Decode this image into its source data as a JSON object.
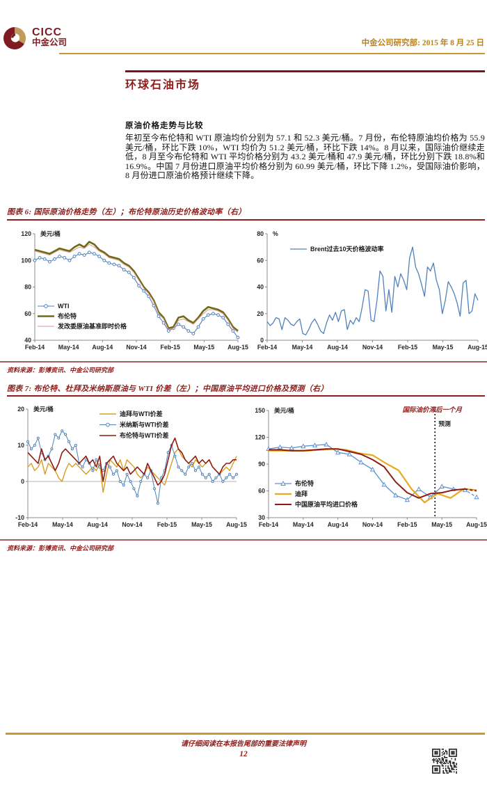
{
  "header": {
    "logo_text_en": "CICC",
    "logo_text_cn": "中金公司",
    "date_line": "中金公司研究部: 2015 年 8 月 25 日",
    "accent_gold": "#c9992f",
    "accent_maroon": "#7e1a20"
  },
  "content": {
    "page_title": "环球石油市场",
    "section_heading": "原油价格走势与比较",
    "paragraph": "年初至今布伦特和 WTI 原油均价分别为 57.1 和 52.3 美元/桶。7 月份，布伦特原油均价格为 55.9 美元/桶，环比下跌 10%，WTI 均价为 51.2 美元/桶，环比下跌 14%。8 月以来，国际油价继续走低，8 月至今布伦特和 WTI 平均价格分别为 43.2 美元/桶和 47.9 美元/桶，环比分别下跌 18.8%和 16.9%。中国 7 月份进口原油平均价格分别为 60.99 美元/桶，环比下降 1.2%，受国际油价影响，8 月份进口原油价格预计继续下降。"
  },
  "figure6": {
    "caption": "图表 6:  国际原油价格走势（左）；布伦特原油历史价格波动率（右）",
    "source": "资料来源：彭博资讯、中金公司研究部"
  },
  "figure7": {
    "caption": "图表 7:  布伦特、杜拜及米纳斯原油与 WTI 价差（左）；中国原油平均进口价格及预测（右）",
    "source": "资料来源：彭博资讯、中金公司研究部"
  },
  "footer": {
    "legal": "请仔细阅读在本报告尾部的重要法律声明",
    "page_number": "12"
  },
  "chart_data": [
    {
      "id": "fig6-left",
      "type": "line",
      "title": "国际原油价格走势",
      "unit_label": "美元/桶",
      "ylim": [
        40,
        120
      ],
      "yticks": [
        40,
        60,
        80,
        100,
        120
      ],
      "x_ticklabels": [
        "Feb-14",
        "May-14",
        "Aug-14",
        "Nov-14",
        "Feb-15",
        "May-15",
        "Aug-15"
      ],
      "series": [
        {
          "name": "WTI",
          "color": "#4f81bd",
          "width": 1.1,
          "marker": "circle",
          "values": [
            100,
            102,
            101,
            99,
            101,
            103,
            102,
            100,
            103,
            105,
            104,
            106,
            105,
            103,
            100,
            98,
            97,
            96,
            93,
            91,
            87,
            81,
            77,
            73,
            66,
            58,
            53,
            47,
            49,
            52,
            50,
            47,
            45,
            50,
            56,
            59,
            60,
            59,
            57,
            52,
            47,
            42
          ]
        },
        {
          "name": "布伦特",
          "color": "#6e6a14",
          "width": 2.6,
          "values": [
            108,
            107,
            106,
            105,
            107,
            109,
            108,
            107,
            110,
            112,
            110,
            114,
            112,
            108,
            106,
            103,
            102,
            101,
            98,
            96,
            92,
            86,
            80,
            76,
            70,
            61,
            57,
            49,
            50,
            57,
            58,
            55,
            53,
            57,
            62,
            65,
            64,
            63,
            61,
            56,
            50,
            47
          ]
        },
        {
          "name": "发改委原油基准即时价格",
          "color": "#d99694",
          "width": 1,
          "values": [
            107,
            106,
            105,
            104,
            106,
            108,
            107,
            106,
            108,
            110,
            109,
            112,
            110,
            107,
            105,
            102,
            101,
            100,
            97,
            95,
            91,
            85,
            79,
            75,
            69,
            60,
            56,
            48,
            49,
            55,
            56,
            54,
            52,
            56,
            60,
            63,
            63,
            62,
            60,
            55,
            49,
            46
          ]
        }
      ]
    },
    {
      "id": "fig6-right",
      "type": "line",
      "title": "布伦特原油历史价格波动率",
      "unit_label": "%",
      "ylim": [
        0,
        80
      ],
      "yticks": [
        0,
        20,
        40,
        60,
        80
      ],
      "x_ticklabels": [
        "Feb-14",
        "May-14",
        "Aug-14",
        "Nov-14",
        "Feb-15",
        "May-15",
        "Aug-15"
      ],
      "series": [
        {
          "name": "Brent过去10天价格波动率",
          "color": "#4f81bd",
          "width": 1.3,
          "values": [
            14,
            11,
            13,
            17,
            16,
            8,
            17,
            15,
            12,
            11,
            14,
            16,
            5,
            4,
            8,
            13,
            16,
            12,
            7,
            5,
            13,
            19,
            15,
            21,
            14,
            22,
            23,
            8,
            15,
            12,
            17,
            14,
            25,
            38,
            37,
            15,
            14,
            30,
            52,
            48,
            22,
            38,
            21,
            48,
            40,
            50,
            45,
            38,
            62,
            70,
            55,
            50,
            42,
            33,
            55,
            52,
            58,
            45,
            38,
            20,
            30,
            44,
            40,
            35,
            28,
            18,
            43,
            45,
            20,
            22,
            35,
            30
          ]
        }
      ]
    },
    {
      "id": "fig7-left",
      "type": "line",
      "title": "布伦特、杜拜及米纳斯原油与 WTI 价差",
      "unit_label": "美元/桶",
      "ylim": [
        -10,
        20
      ],
      "yticks": [
        -10,
        0,
        10,
        20
      ],
      "zeroline": true,
      "x_ticklabels": [
        "Feb-14",
        "May-14",
        "Aug-14",
        "Nov-14",
        "Feb-15",
        "May-15",
        "Aug-15"
      ],
      "series": [
        {
          "name": "迪拜与WTI价差",
          "color": "#d69d1f",
          "width": 1.4,
          "values": [
            4,
            5,
            3,
            4,
            6,
            2,
            5,
            4,
            3,
            1,
            0,
            3,
            5,
            4,
            5,
            4,
            3,
            2,
            3,
            4,
            3,
            5,
            -3,
            2,
            6,
            5,
            4,
            6,
            3,
            6,
            5,
            4,
            2,
            1,
            2,
            4,
            3,
            2,
            1,
            0,
            -1,
            2,
            5,
            8,
            9,
            7,
            6,
            5,
            4,
            6,
            5,
            4,
            5,
            6,
            4,
            3,
            2,
            3,
            4,
            3,
            5,
            7
          ]
        },
        {
          "name": "米纳斯与WTI价差",
          "color": "#4f81bd",
          "width": 1,
          "marker": "circle",
          "values": [
            11,
            9,
            10,
            12,
            8,
            6,
            7,
            9,
            13,
            12,
            14,
            13,
            11,
            9,
            10,
            5,
            4,
            6,
            5,
            3,
            6,
            4,
            3,
            5,
            4,
            2,
            3,
            0,
            -1,
            2,
            0,
            -2,
            -4,
            0,
            2,
            1,
            3,
            -2,
            -6,
            1,
            3,
            8,
            10,
            7,
            4,
            3,
            2,
            4,
            5,
            3,
            4,
            2,
            1,
            2,
            0,
            1,
            2,
            0,
            1,
            2,
            1,
            2
          ]
        },
        {
          "name": "布伦特与WTI价差",
          "color": "#8f1b12",
          "width": 1.6,
          "values": [
            8,
            7,
            6,
            5,
            9,
            6,
            7,
            5,
            3,
            5,
            8,
            9,
            8,
            7,
            6,
            5,
            6,
            7,
            5,
            6,
            4,
            7,
            0,
            5,
            6,
            7,
            5,
            4,
            3,
            4,
            2,
            3,
            4,
            3,
            2,
            5,
            3,
            1,
            -1,
            0,
            2,
            6,
            10,
            12,
            9,
            8,
            6,
            5,
            6,
            7,
            5,
            6,
            5,
            6,
            4,
            3,
            2,
            4,
            5,
            5,
            6,
            6
          ]
        }
      ]
    },
    {
      "id": "fig7-right",
      "type": "line",
      "title": "中国原油平均进口价格及预测",
      "unit_label": "美元/桶",
      "annotation": "国际油价滞后一个月",
      "vline_label": "预测",
      "ylim": [
        30,
        150
      ],
      "yticks": [
        30,
        60,
        90,
        120,
        150
      ],
      "x_ticklabels": [
        "Feb-14",
        "May-14",
        "Aug-14",
        "Nov-14",
        "Feb-15",
        "May-15",
        "Aug-15"
      ],
      "series": [
        {
          "name": "布伦特",
          "color": "#5b8fd0",
          "width": 1.3,
          "marker": "triangle",
          "dash_from": 16,
          "values": [
            107,
            109,
            108,
            110,
            111,
            112,
            103,
            101,
            92,
            84,
            67,
            55,
            50,
            62,
            53,
            65,
            62,
            61,
            53
          ]
        },
        {
          "name": "迪拜",
          "color": "#e8a91d",
          "width": 2.2,
          "values": [
            105,
            105,
            105,
            105,
            106,
            107,
            106,
            102,
            100,
            91,
            83,
            62,
            47,
            57,
            52,
            62,
            61
          ]
        },
        {
          "name": "中国原油平均进口价格",
          "color": "#8f1b12",
          "width": 2,
          "dash_from": 17,
          "values": [
            106,
            106,
            105,
            105,
            106,
            107,
            107,
            104,
            101,
            95,
            87,
            70,
            58,
            52,
            57,
            58,
            61,
            62,
            60
          ]
        }
      ]
    }
  ]
}
